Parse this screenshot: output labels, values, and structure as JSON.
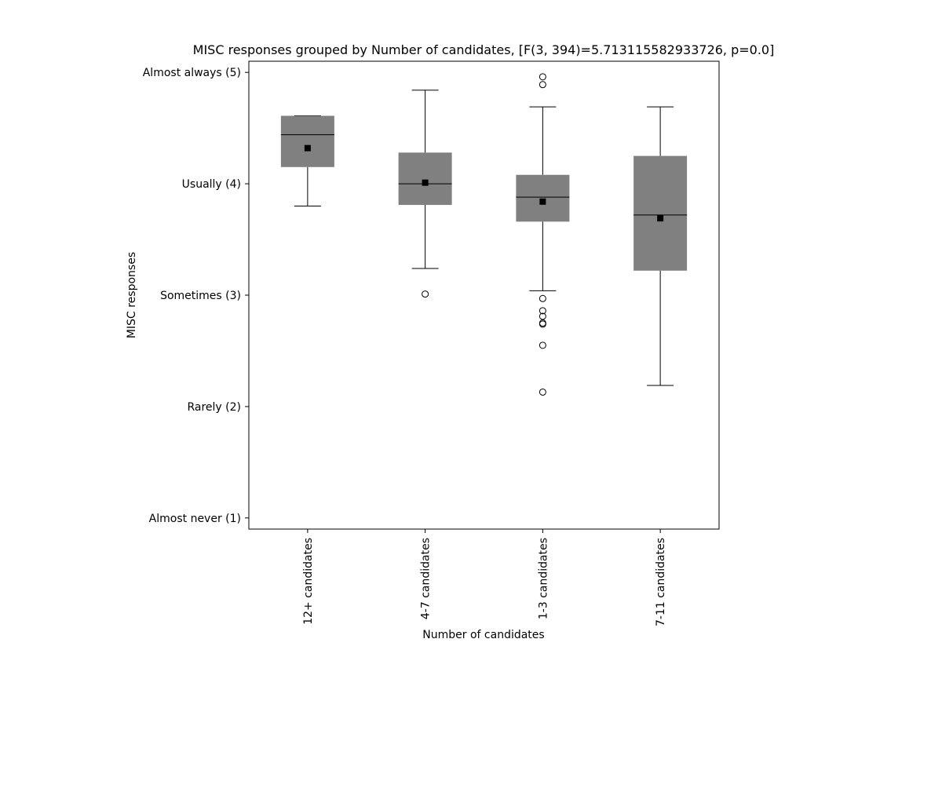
{
  "chart_data": {
    "type": "box",
    "title": "MISC responses grouped by Number of candidates, [F(3, 394)=5.713115582933726, p=0.0]",
    "xlabel": "Number of candidates",
    "ylabel": "MISC responses",
    "ylim": [
      0.9,
      5.1
    ],
    "yticks": [
      {
        "value": 5,
        "label": "Almost always (5)"
      },
      {
        "value": 4,
        "label": "Usually (4)"
      },
      {
        "value": 3,
        "label": "Sometimes (3)"
      },
      {
        "value": 2,
        "label": "Rarely (2)"
      },
      {
        "value": 1,
        "label": "Almost never (1)"
      }
    ],
    "grid": false,
    "legend": "none",
    "colors": {
      "box_fill": "#808080",
      "line": "#000000"
    },
    "categories": [
      "12+ candidates",
      "4-7 candidates",
      "1-3 candidates",
      "7-11 candidates"
    ],
    "boxes": [
      {
        "category": "12+ candidates",
        "whisker_low": 3.8,
        "q1": 4.15,
        "median": 4.44,
        "q3": 4.61,
        "whisker_high": 4.61,
        "mean": 4.32,
        "outliers": []
      },
      {
        "category": "4-7 candidates",
        "whisker_low": 3.24,
        "q1": 3.81,
        "median": 4.0,
        "q3": 4.28,
        "whisker_high": 4.84,
        "mean": 4.01,
        "outliers": [
          3.01
        ]
      },
      {
        "category": "1-3 candidates",
        "whisker_low": 3.04,
        "q1": 3.66,
        "median": 3.88,
        "q3": 4.08,
        "whisker_high": 4.69,
        "mean": 3.84,
        "outliers": [
          4.96,
          4.89,
          2.97,
          2.86,
          2.81,
          2.75,
          2.74,
          2.55,
          2.13
        ]
      },
      {
        "category": "7-11 candidates",
        "whisker_low": 2.19,
        "q1": 3.22,
        "median": 3.72,
        "q3": 4.25,
        "whisker_high": 4.69,
        "mean": 3.69,
        "outliers": []
      }
    ]
  }
}
